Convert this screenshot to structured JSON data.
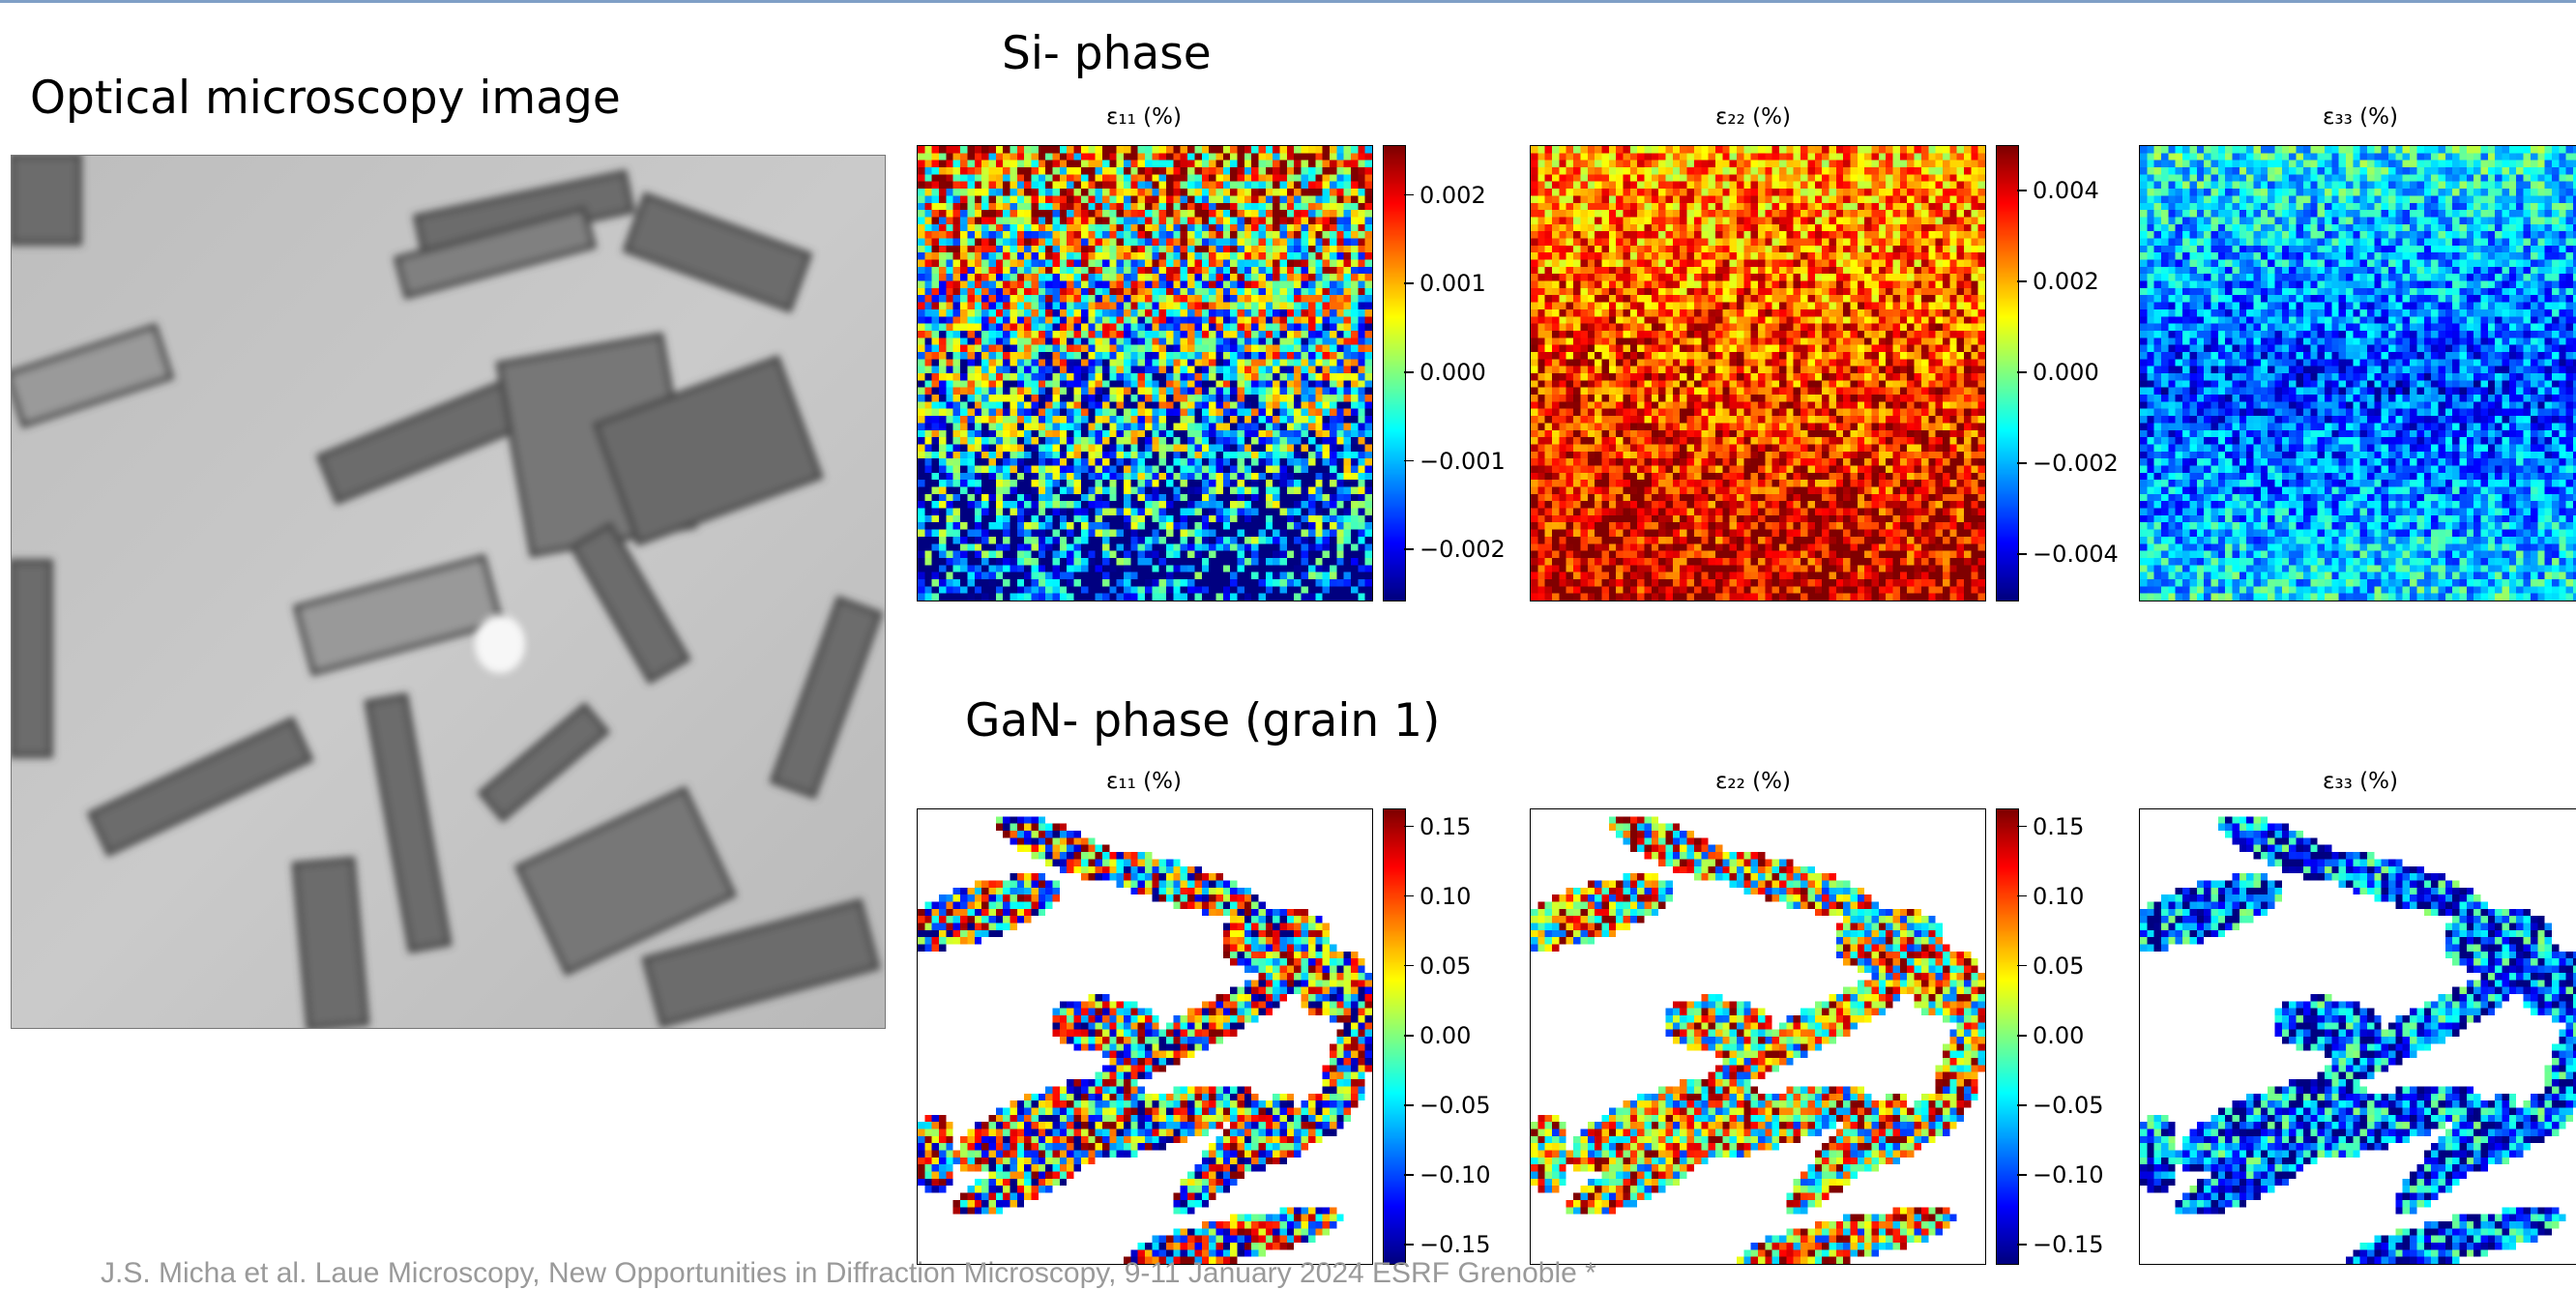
{
  "slide": {
    "optical_title": "Optical microscopy image",
    "si_title": "Si- phase",
    "gan_title": "GaN- phase (grain 1)",
    "footer": "J.S. Micha et al. Laue Microscopy, New Opportunities in Diffraction Microscopy, 9-11 January 2024 ESRF Grenoble *"
  },
  "colormap": "jet",
  "maps": {
    "si": [
      {
        "label": "ε₁₁ (%)",
        "ticks": [
          "0.002",
          "0.001",
          "0.000",
          "−0.001",
          "−0.002"
        ],
        "range": [
          -0.0025,
          0.0025
        ]
      },
      {
        "label": "ε₂₂ (%)",
        "ticks": [
          "0.004",
          "0.002",
          "0.000",
          "−0.002",
          "−0.004"
        ],
        "range": [
          -0.005,
          0.005
        ]
      },
      {
        "label": "ε₃₃ (%)",
        "ticks": [],
        "range": [
          -0.005,
          0.005
        ]
      }
    ],
    "gan": [
      {
        "label": "ε₁₁ (%)",
        "ticks": [
          "0.15",
          "0.10",
          "0.05",
          "0.00",
          "−0.05",
          "−0.10",
          "−0.15"
        ],
        "range": [
          -0.16,
          0.16
        ]
      },
      {
        "label": "ε₂₂ (%)",
        "ticks": [
          "0.15",
          "0.10",
          "0.05",
          "0.00",
          "−0.05",
          "−0.10",
          "−0.15"
        ],
        "range": [
          -0.16,
          0.16
        ]
      },
      {
        "label": "ε₃₃ (%)",
        "ticks": [],
        "range": [
          -0.16,
          0.16
        ]
      }
    ]
  }
}
